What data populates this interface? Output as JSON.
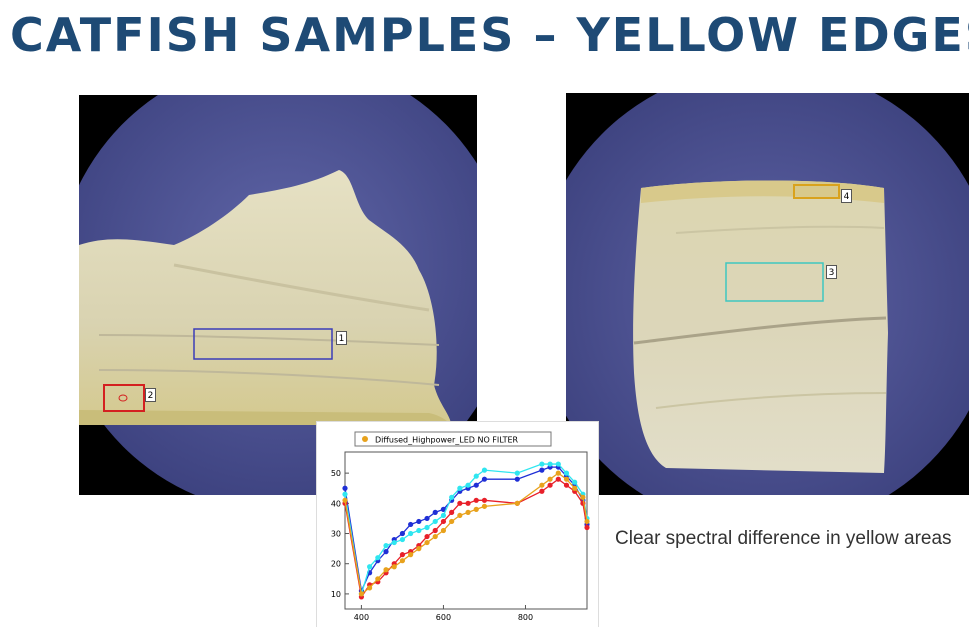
{
  "slide": {
    "title": "CATFISH SAMPLES – YELLOW EDGES",
    "caption": "Clear spectral difference in yellow areas"
  },
  "images": {
    "left": {
      "description_icon": "catfish-fillet-photo",
      "roi_labels": [
        "1",
        "2"
      ]
    },
    "right": {
      "description_icon": "catfish-fillet-photo",
      "roi_labels": [
        "3",
        "4"
      ]
    }
  },
  "colors": {
    "title": "#1e4a75",
    "dish": "#4a4f8f",
    "roi1": "#3b3db8",
    "roi2": "#d42020",
    "roi3": "#3fc7c0",
    "roi4": "#d9a21c"
  },
  "chart_data": {
    "type": "line",
    "legend": [
      "Diffused_Highpower_LED NO FILTER"
    ],
    "legend_placement": "top-center",
    "xlim": [
      360,
      950
    ],
    "ylim": [
      5,
      57
    ],
    "xticks": [
      400,
      600,
      800
    ],
    "yticks": [
      10,
      20,
      30,
      40,
      50
    ],
    "series": [
      {
        "color": "#1f2fd6",
        "x": [
          360,
          400,
          420,
          440,
          460,
          480,
          500,
          520,
          540,
          560,
          580,
          600,
          620,
          640,
          660,
          680,
          700,
          780,
          840,
          860,
          880,
          900,
          920,
          940,
          950
        ],
        "y": [
          45,
          11,
          17,
          21,
          24,
          28,
          30,
          33,
          34,
          35,
          37,
          38,
          41,
          44,
          45,
          46,
          48,
          48,
          51,
          52,
          52,
          49,
          46,
          41,
          33
        ]
      },
      {
        "color": "#2fe6f0",
        "x": [
          360,
          400,
          420,
          440,
          460,
          480,
          500,
          520,
          540,
          560,
          580,
          600,
          620,
          640,
          660,
          680,
          700,
          780,
          840,
          860,
          880,
          900,
          920,
          940,
          950
        ],
        "y": [
          43,
          10,
          19,
          22,
          26,
          27,
          28,
          30,
          31,
          32,
          34,
          36,
          42,
          45,
          46,
          49,
          51,
          50,
          53,
          53,
          53,
          50,
          47,
          43,
          35
        ]
      },
      {
        "color": "#e8202a",
        "x": [
          360,
          400,
          420,
          440,
          460,
          480,
          500,
          520,
          540,
          560,
          580,
          600,
          620,
          640,
          660,
          680,
          700,
          780,
          840,
          860,
          880,
          900,
          920,
          940,
          950
        ],
        "y": [
          40,
          9,
          13,
          14,
          17,
          20,
          23,
          24,
          26,
          29,
          31,
          34,
          37,
          40,
          40,
          41,
          41,
          40,
          44,
          46,
          48,
          46,
          44,
          40,
          32
        ]
      },
      {
        "color": "#e8a21c",
        "x": [
          360,
          400,
          420,
          440,
          460,
          480,
          500,
          520,
          540,
          560,
          580,
          600,
          620,
          640,
          660,
          680,
          700,
          780,
          840,
          860,
          880,
          900,
          920,
          940,
          950
        ],
        "y": [
          41,
          10,
          12,
          15,
          18,
          19,
          21,
          23,
          25,
          27,
          29,
          31,
          34,
          36,
          37,
          38,
          39,
          40,
          46,
          48,
          50,
          48,
          45,
          42,
          34
        ]
      }
    ]
  }
}
